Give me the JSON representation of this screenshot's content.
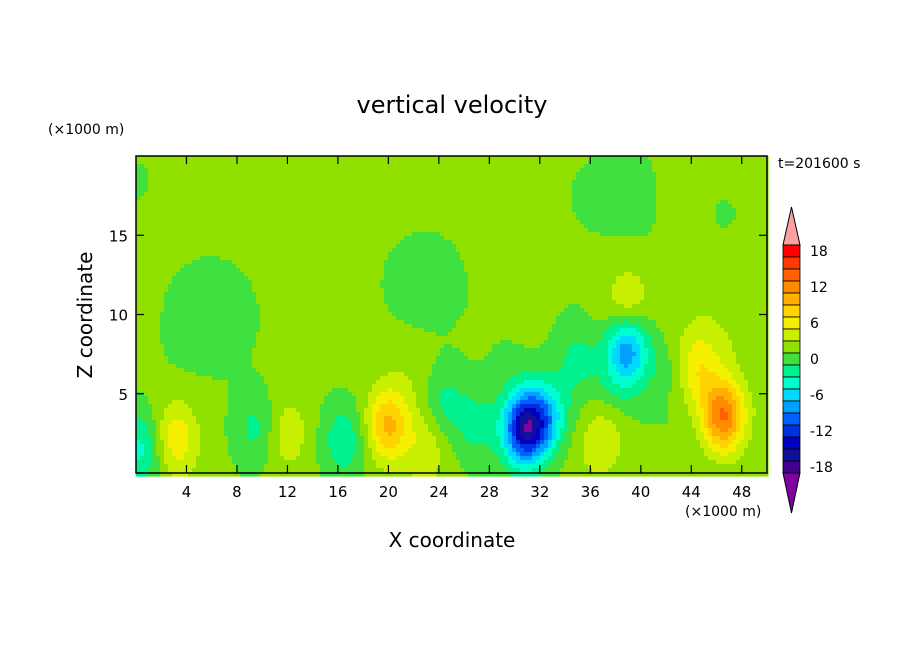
{
  "chart_data": {
    "type": "heatmap",
    "title": "vertical velocity",
    "xlabel": "X coordinate",
    "ylabel": "Z coordinate",
    "x_unit": "(×1000 m)",
    "y_unit": "(×1000 m)",
    "time_label": "t=201600 s",
    "xlim": [
      0,
      50
    ],
    "ylim": [
      0,
      20
    ],
    "x_ticks": [
      4,
      8,
      12,
      16,
      20,
      24,
      28,
      32,
      36,
      40,
      44,
      48
    ],
    "y_ticks": [
      5,
      10,
      15
    ],
    "colorbar": {
      "tick_labels": [
        "18",
        "12",
        "6",
        "0",
        "-6",
        "-12",
        "-18"
      ],
      "tick_values": [
        18,
        12,
        6,
        0,
        -6,
        -12,
        -18
      ],
      "levels": [
        -18,
        -16,
        -14,
        -12,
        -10,
        -8,
        -6,
        -4,
        -2,
        0,
        2,
        4,
        6,
        8,
        10,
        12,
        14,
        16,
        18
      ],
      "colors": [
        "#ffa0a0",
        "#ff0000",
        "#ff3a00",
        "#ff6000",
        "#ff8a00",
        "#ffb000",
        "#ffd400",
        "#f4f000",
        "#c8f000",
        "#90e000",
        "#40e040",
        "#00f090",
        "#00ffd0",
        "#00d8ff",
        "#00a0ff",
        "#0060ff",
        "#0030e0",
        "#0000c0",
        "#10109a",
        "#400090",
        "#8000a0"
      ]
    },
    "features": [
      {
        "x": 46.5,
        "z": 3.6,
        "w": 12
      },
      {
        "x": 44.5,
        "z": 6.5,
        "w": 5
      },
      {
        "x": 20.0,
        "z": 3.0,
        "w": 8
      },
      {
        "x": 3.2,
        "z": 2.2,
        "w": 5
      },
      {
        "x": 30.8,
        "z": 2.8,
        "w": -16
      },
      {
        "x": 32.5,
        "z": 3.5,
        "w": -7
      },
      {
        "x": 38.9,
        "z": 7.9,
        "w": -10
      },
      {
        "x": 39.0,
        "z": 10.5,
        "w": 4
      },
      {
        "x": 9.5,
        "z": 2.8,
        "w": -3
      },
      {
        "x": 27.0,
        "z": 3.0,
        "w": -3
      },
      {
        "x": 35.0,
        "z": 7.0,
        "w": -3
      },
      {
        "x": 12.0,
        "z": 2.5,
        "w": 3
      },
      {
        "x": 0.3,
        "z": 1.5,
        "w": -5
      },
      {
        "x": 16.5,
        "z": 2.0,
        "w": -4
      },
      {
        "x": 23.0,
        "z": 1.5,
        "w": 3
      },
      {
        "x": 37.0,
        "z": 2.0,
        "w": 3
      },
      {
        "x": 24.5,
        "z": 4.5,
        "w": -3
      }
    ]
  }
}
